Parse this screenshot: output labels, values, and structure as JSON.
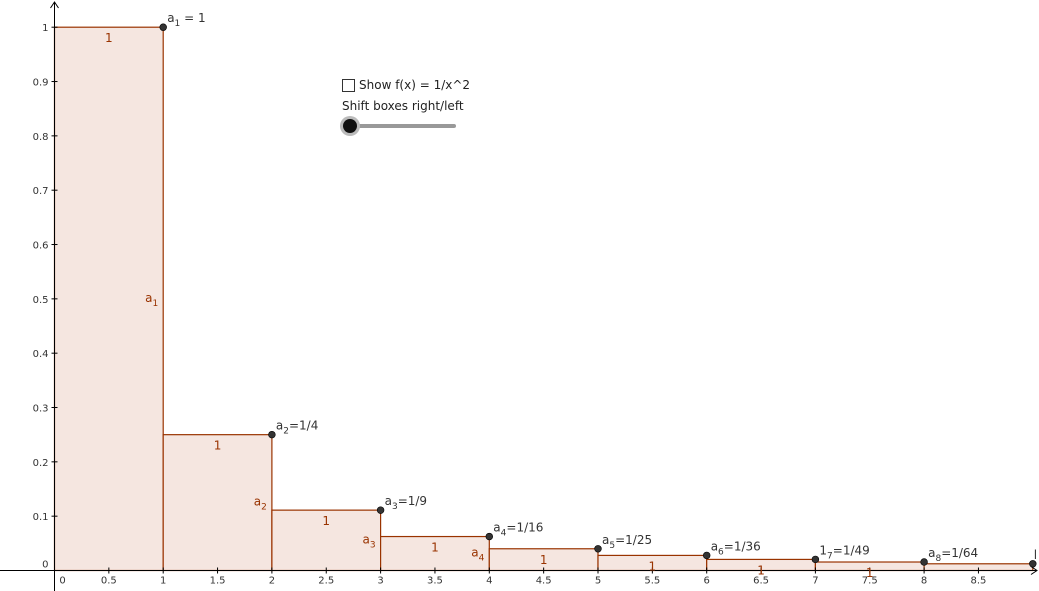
{
  "chart_data": {
    "type": "bar",
    "x": [
      1,
      2,
      3,
      4,
      5,
      6,
      7,
      8,
      9
    ],
    "values": [
      1,
      0.25,
      0.1111,
      0.0625,
      0.04,
      0.02778,
      0.02041,
      0.015625,
      0.012346
    ],
    "xlim": [
      -0.5,
      9.1
    ],
    "ylim": [
      -0.012,
      1.04
    ],
    "x_ticks": [
      "0",
      "0.5",
      "1",
      "1.5",
      "2",
      "2.5",
      "3",
      "3.5",
      "4",
      "4.5",
      "5",
      "5.5",
      "6",
      "6.5",
      "7",
      "7.5",
      "8",
      "8.5"
    ],
    "x_tick_values": [
      0,
      0.5,
      1,
      1.5,
      2,
      2.5,
      3,
      3.5,
      4,
      4.5,
      5,
      5.5,
      6,
      6.5,
      7,
      7.5,
      8,
      8.5
    ],
    "y_ticks": [
      "0",
      "0.1",
      "0.2",
      "0.3",
      "0.4",
      "0.5",
      "0.6",
      "0.7",
      "0.8",
      "0.9",
      "1"
    ],
    "y_tick_values": [
      0,
      0.1,
      0.2,
      0.3,
      0.4,
      0.5,
      0.6,
      0.7,
      0.8,
      0.9,
      1
    ],
    "width_labels": [
      "1",
      "1",
      "1",
      "1",
      "1",
      "1",
      "1",
      "1"
    ],
    "height_labels": [
      {
        "base": "a",
        "sub": "1"
      },
      {
        "base": "a",
        "sub": "2"
      },
      {
        "base": "a",
        "sub": "3"
      },
      {
        "base": "a",
        "sub": "4"
      }
    ],
    "point_labels": [
      {
        "base": "a",
        "sub": "1",
        "rest": " = 1"
      },
      {
        "base": "a",
        "sub": "2",
        "rest": "=1/4"
      },
      {
        "base": "a",
        "sub": "3",
        "rest": "=1/9"
      },
      {
        "base": "a",
        "sub": "4",
        "rest": "=1/16"
      },
      {
        "base": "a",
        "sub": "5",
        "rest": "=1/25"
      },
      {
        "base": "a",
        "sub": "6",
        "rest": "=1/36"
      },
      {
        "base": "1",
        "sub": "7",
        "rest": "=1/49"
      },
      {
        "base": "a",
        "sub": "8",
        "rest": "=1/64"
      },
      {
        "base": "l",
        "sub": "",
        "rest": ""
      }
    ],
    "grid": false,
    "colors": {
      "stroke": "#993300",
      "fill": "#f5e6e0",
      "axis": "#000000",
      "point": "#333333"
    }
  },
  "controls": {
    "show_function_label": "Show f(x) = 1/x^2",
    "show_function_checked": false,
    "shift_label": "Shift boxes right/left",
    "shift_value": 0
  }
}
